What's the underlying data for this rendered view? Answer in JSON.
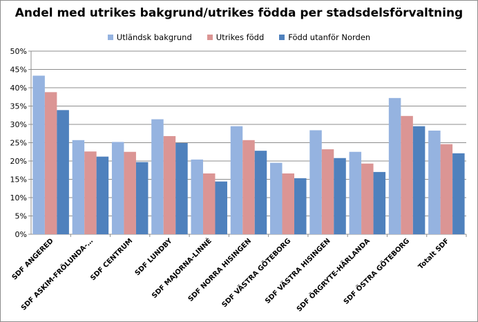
{
  "colors": {
    "s0": "#95b3e0",
    "s1": "#db9594",
    "s2": "#4f81bd",
    "grid": "#8c8c8c"
  },
  "chart_data": {
    "type": "bar",
    "title": "Andel med utrikes bakgrund/utrikes födda per stadsdelsförvaltning",
    "xlabel": "",
    "ylabel": "",
    "ylim": [
      0,
      50
    ],
    "yticks": [
      "0%",
      "5%",
      "10%",
      "15%",
      "20%",
      "25%",
      "30%",
      "35%",
      "40%",
      "45%",
      "50%"
    ],
    "grid": true,
    "legend_position": "top",
    "categories": [
      "SDF ANGERED",
      "SDF ASKIM-FRÖLUNDA-…",
      "SDF CENTRUM",
      "SDF LUNDBY",
      "SDF MAJORNA-LINNÉ",
      "SDF NORRA HISINGEN",
      "SDF VÄSTRA GÖTEBORG",
      "SDF VÄSTRA HISINGEN",
      "SDF ÖRGRYTE-HÄRLANDA",
      "SDF ÖSTRA GÖTEBORG",
      "Totalt SDF"
    ],
    "series": [
      {
        "name": "Utländsk bakgrund",
        "values": [
          43.3,
          25.7,
          25.2,
          31.4,
          20.4,
          29.5,
          19.5,
          28.4,
          22.5,
          37.2,
          28.3
        ]
      },
      {
        "name": "Utrikes född",
        "values": [
          38.8,
          22.6,
          22.5,
          26.8,
          16.6,
          25.7,
          16.6,
          23.2,
          19.3,
          32.3,
          24.6
        ]
      },
      {
        "name": "Född utanför Norden",
        "values": [
          33.9,
          21.2,
          19.7,
          24.9,
          14.4,
          22.8,
          15.3,
          20.8,
          17.0,
          29.5,
          22.1
        ]
      }
    ]
  }
}
